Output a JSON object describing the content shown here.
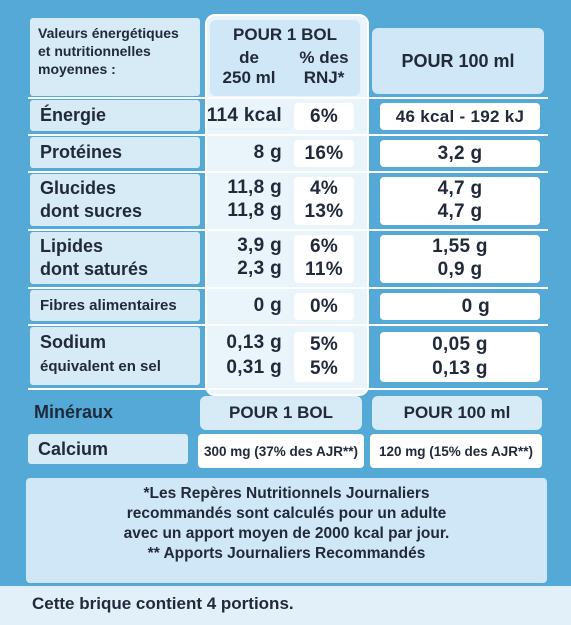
{
  "header": {
    "title_lines": [
      "Valeurs énergétiques",
      "et nutritionnelles",
      "moyennes :"
    ],
    "col_bol": "POUR 1 BOL",
    "col_de_line1": "de",
    "col_de_line2": "250 ml",
    "col_rnj_line1": "% des",
    "col_rnj_line2": "RNJ*",
    "col_100": "POUR 100 ml"
  },
  "rows": [
    {
      "label": "Énergie",
      "bol": "114 kcal",
      "rnj": "6%",
      "per100": "46 kcal - 192 kJ"
    },
    {
      "label": "Protéines",
      "bol": "8 g",
      "rnj": "16%",
      "per100": "3,2 g"
    },
    {
      "label": "Glucides",
      "sub": "dont sucres",
      "bol": "11,8 g",
      "bol_sub": "11,8 g",
      "rnj": "4%",
      "rnj_sub": "13%",
      "per100": "4,7 g",
      "per100_sub": "4,7 g"
    },
    {
      "label": "Lipides",
      "sub": "dont saturés",
      "bol": "3,9 g",
      "bol_sub": "2,3 g",
      "rnj": "6%",
      "rnj_sub": "11%",
      "per100": "1,55 g",
      "per100_sub": "0,9 g"
    },
    {
      "label": "Fibres alimentaires",
      "bol": "0 g",
      "rnj": "0%",
      "per100": "0 g"
    },
    {
      "label": "Sodium",
      "sub": "équivalent en sel",
      "bol": "0,13 g",
      "bol_sub": "0,31 g",
      "rnj": "5%",
      "rnj_sub": "5%",
      "per100": "0,05 g",
      "per100_sub": "0,13 g"
    }
  ],
  "minerals": {
    "header_label": "Minéraux",
    "col_bol": "POUR 1 BOL",
    "col_100": "POUR 100 ml",
    "label": "Calcium",
    "bol": "300 mg (37% des AJR**)",
    "per100": "120 mg (15% des AJR**)"
  },
  "footnotes": [
    "*Les Repères Nutritionnels Journaliers",
    "recommandés sont calculés pour un adulte",
    "avec un apport moyen de 2000 kcal par jour.",
    "** Apports Journaliers Recommandés"
  ],
  "portions": "Cette brique contient 4 portions."
}
